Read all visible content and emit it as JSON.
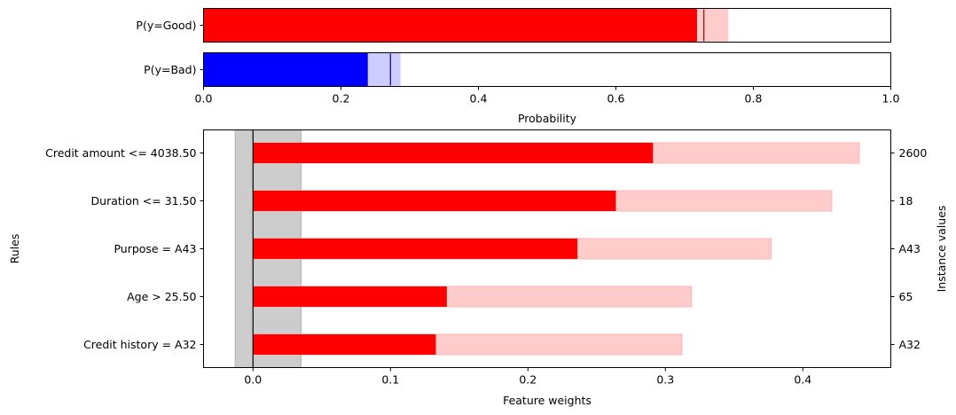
{
  "colors": {
    "good": "#ff0000",
    "good_light": "#ffcccc",
    "bad": "#0000ff",
    "bad_light": "#ccccff",
    "band": "#cccccc",
    "axis": "#000000"
  },
  "chart_data": [
    {
      "type": "bar",
      "orientation": "horizontal",
      "categories": [
        "P(y=Good)",
        "P(y=Bad)"
      ],
      "series": [
        {
          "values": [
            0.718,
            0.239
          ]
        },
        {
          "values": [
            0.763,
            0.286
          ]
        }
      ],
      "markers": [
        0.728,
        0.272
      ],
      "xlim": [
        0.0,
        1.0
      ],
      "xticks": [
        0.0,
        0.2,
        0.4,
        0.6,
        0.8,
        1.0
      ],
      "xtick_labels": [
        "0.0",
        "0.2",
        "0.4",
        "0.6",
        "0.8",
        "1.0"
      ],
      "xlabel": "Probability",
      "ylabel": "",
      "grid": false
    },
    {
      "type": "bar",
      "orientation": "horizontal",
      "categories": [
        "Credit amount <= 4038.50",
        "Duration <= 31.50",
        "Purpose = A43",
        "Age > 25.50",
        "Credit history = A32"
      ],
      "instance_values": [
        "2600",
        "18",
        "A43",
        "65",
        "A32"
      ],
      "series": [
        {
          "values": [
            0.291,
            0.264,
            0.236,
            0.141,
            0.133
          ]
        },
        {
          "values": [
            0.441,
            0.421,
            0.377,
            0.319,
            0.312
          ]
        }
      ],
      "band": [
        -0.013,
        0.035
      ],
      "xlim": [
        -0.036,
        0.464
      ],
      "xticks": [
        0.0,
        0.1,
        0.2,
        0.3,
        0.4
      ],
      "xtick_labels": [
        "0.0",
        "0.1",
        "0.2",
        "0.3",
        "0.4"
      ],
      "xlabel": "Feature weights",
      "ylabel": "Rules",
      "ylabel_right": "Instance values",
      "grid": false
    }
  ]
}
